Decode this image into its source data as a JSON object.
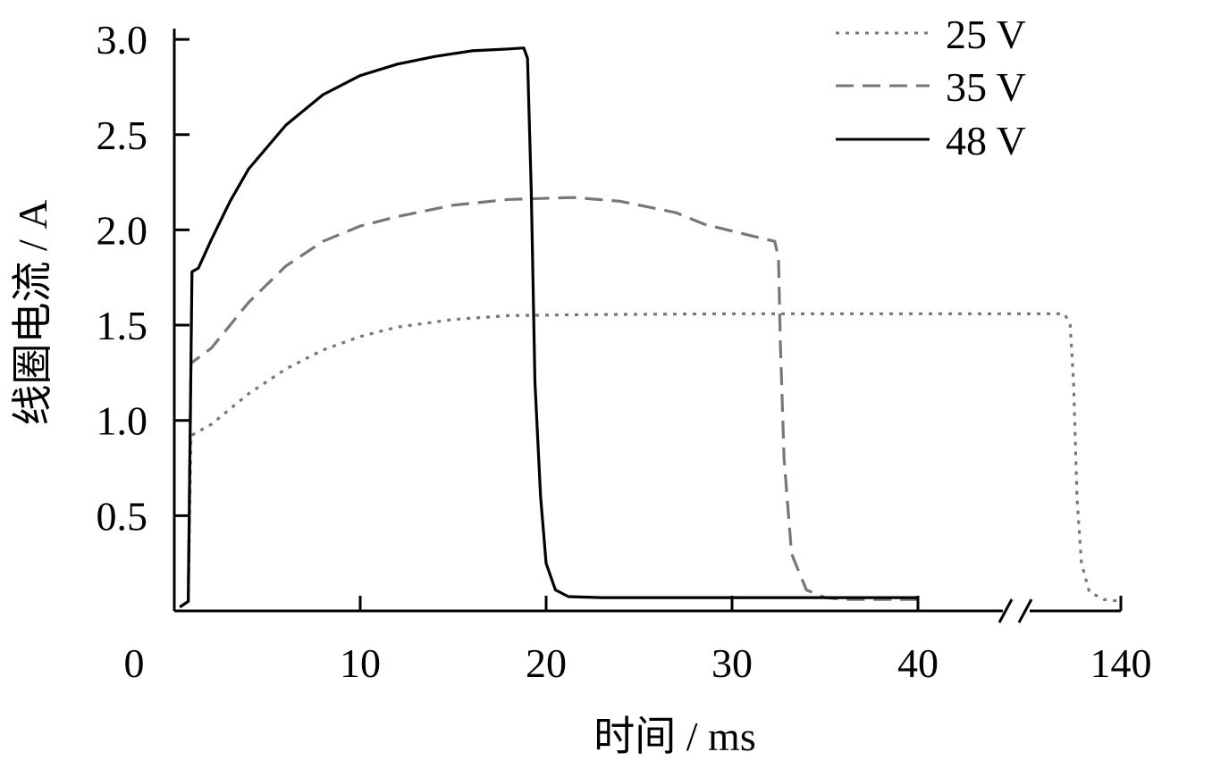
{
  "chart_data": {
    "type": "line",
    "xlabel": "时间 / ms",
    "ylabel": "线圈电流 / A",
    "x_ticks": [
      "0",
      "10",
      "20",
      "30",
      "40",
      "140"
    ],
    "y_ticks": [
      "0.5",
      "1.0",
      "1.5",
      "2.0",
      "2.5",
      "3.0"
    ],
    "xlim": [
      0,
      140
    ],
    "ylim": [
      0,
      3.0
    ],
    "x_axis_break": [
      40,
      130
    ],
    "grid": false,
    "legend_position": "top-right",
    "series": [
      {
        "name": "25 V",
        "style": "dotted",
        "color": "#777777",
        "points": [
          [
            0.3,
            0.02
          ],
          [
            0.75,
            0.05
          ],
          [
            0.9,
            0.92
          ],
          [
            2,
            0.98
          ],
          [
            4,
            1.14
          ],
          [
            6,
            1.27
          ],
          [
            8,
            1.37
          ],
          [
            10,
            1.44
          ],
          [
            12,
            1.49
          ],
          [
            15,
            1.53
          ],
          [
            18,
            1.55
          ],
          [
            22,
            1.555
          ],
          [
            30,
            1.56
          ],
          [
            40,
            1.56
          ],
          [
            130,
            1.56
          ],
          [
            133,
            1.56
          ],
          [
            135,
            1.56
          ],
          [
            135.5,
            1.5
          ],
          [
            135.8,
            1.2
          ],
          [
            136.1,
            0.6
          ],
          [
            136.5,
            0.25
          ],
          [
            137.2,
            0.1
          ],
          [
            138.5,
            0.06
          ],
          [
            140,
            0.05
          ]
        ]
      },
      {
        "name": "35 V",
        "style": "dashed",
        "color": "#777777",
        "points": [
          [
            0.3,
            0.02
          ],
          [
            0.75,
            0.05
          ],
          [
            0.9,
            1.3
          ],
          [
            2,
            1.38
          ],
          [
            4,
            1.62
          ],
          [
            6,
            1.81
          ],
          [
            8,
            1.94
          ],
          [
            10,
            2.02
          ],
          [
            12,
            2.07
          ],
          [
            15,
            2.13
          ],
          [
            18,
            2.16
          ],
          [
            21.5,
            2.17
          ],
          [
            24,
            2.15
          ],
          [
            27,
            2.09
          ],
          [
            28.5,
            2.03
          ],
          [
            31,
            1.97
          ],
          [
            32.3,
            1.94
          ],
          [
            32.5,
            1.85
          ],
          [
            32.6,
            1.4
          ],
          [
            32.8,
            0.8
          ],
          [
            33.2,
            0.3
          ],
          [
            34,
            0.11
          ],
          [
            35,
            0.07
          ],
          [
            36,
            0.06
          ],
          [
            40,
            0.06
          ]
        ]
      },
      {
        "name": "48 V",
        "style": "solid",
        "color": "#000000",
        "points": [
          [
            0.3,
            0.02
          ],
          [
            0.75,
            0.05
          ],
          [
            0.95,
            1.78
          ],
          [
            1.3,
            1.8
          ],
          [
            2,
            1.95
          ],
          [
            3,
            2.15
          ],
          [
            4,
            2.32
          ],
          [
            6,
            2.55
          ],
          [
            8,
            2.71
          ],
          [
            10,
            2.81
          ],
          [
            12,
            2.87
          ],
          [
            14,
            2.91
          ],
          [
            16,
            2.94
          ],
          [
            18,
            2.95
          ],
          [
            18.8,
            2.955
          ],
          [
            19,
            2.9
          ],
          [
            19.2,
            2.2
          ],
          [
            19.4,
            1.2
          ],
          [
            19.7,
            0.6
          ],
          [
            20,
            0.25
          ],
          [
            20.5,
            0.11
          ],
          [
            21.2,
            0.075
          ],
          [
            23,
            0.07
          ],
          [
            30,
            0.07
          ],
          [
            40,
            0.07
          ]
        ]
      }
    ]
  }
}
